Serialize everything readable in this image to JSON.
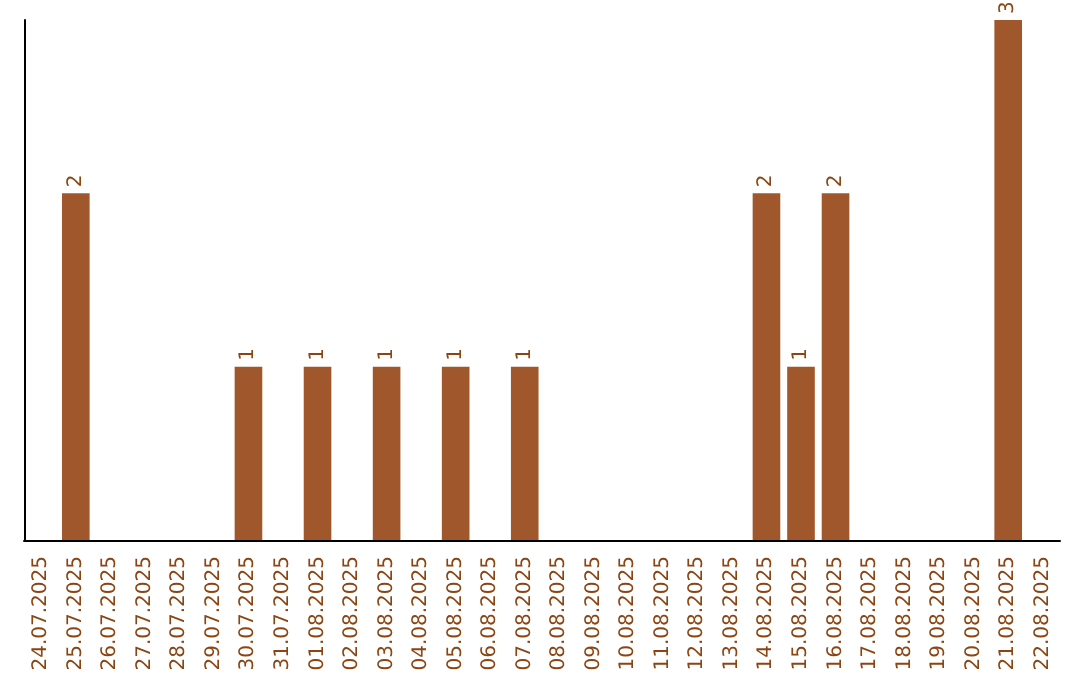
{
  "chart_data": {
    "type": "bar",
    "categories": [
      "24.07.2025",
      "25.07.2025",
      "26.07.2025",
      "27.07.2025",
      "28.07.2025",
      "29.07.2025",
      "30.07.2025",
      "31.07.2025",
      "01.08.2025",
      "02.08.2025",
      "03.08.2025",
      "04.08.2025",
      "05.08.2025",
      "06.08.2025",
      "07.08.2025",
      "08.08.2025",
      "09.08.2025",
      "10.08.2025",
      "11.08.2025",
      "12.08.2025",
      "13.08.2025",
      "14.08.2025",
      "15.08.2025",
      "16.08.2025",
      "17.08.2025",
      "18.08.2025",
      "19.08.2025",
      "20.08.2025",
      "21.08.2025",
      "22.08.2025"
    ],
    "values": [
      0,
      2,
      0,
      0,
      0,
      0,
      1,
      0,
      1,
      0,
      1,
      0,
      1,
      0,
      1,
      0,
      0,
      0,
      0,
      0,
      0,
      2,
      1,
      2,
      0,
      0,
      0,
      0,
      3,
      0
    ],
    "value_labels": [
      null,
      "2",
      null,
      null,
      null,
      null,
      "1",
      null,
      "1",
      null,
      "1",
      null,
      "1",
      null,
      "1",
      null,
      null,
      null,
      null,
      null,
      null,
      "2",
      "1",
      "2",
      null,
      null,
      null,
      null,
      "3",
      null
    ],
    "color": "#a0572c",
    "grid": false,
    "tick_labels": "x"
  }
}
